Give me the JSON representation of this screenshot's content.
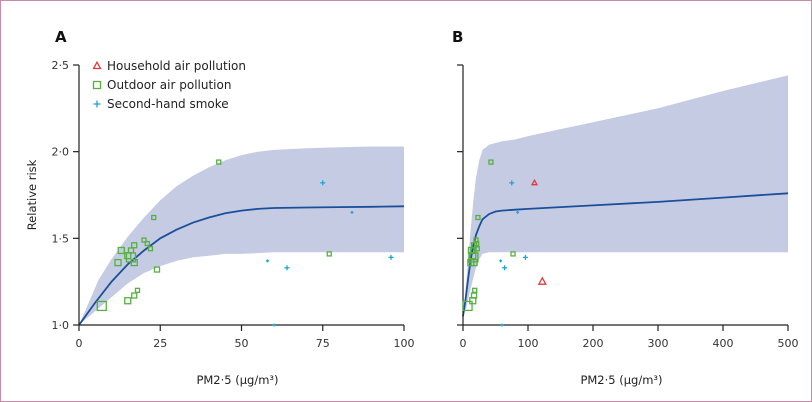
{
  "colors": {
    "band": "#c6cbe4",
    "curve": "#1a4f9a",
    "household": "#e03a3a",
    "outdoor": "#55b040",
    "secondhand": "#1da6d8",
    "axis": "#222222",
    "border": "#c98aa8"
  },
  "chart_data": [
    {
      "panel": "A",
      "type": "scatter",
      "xlabel": "PM2·5 (μg/m³)",
      "ylabel": "Relative risk",
      "xlim": [
        0,
        100
      ],
      "ylim": [
        1.0,
        2.5
      ],
      "x_ticks": [
        "0",
        "25",
        "50",
        "75",
        "100"
      ],
      "y_ticks": [
        "1·0",
        "1·5",
        "2·0",
        "2·5"
      ],
      "legend": [
        {
          "name": "Household air pollution",
          "marker": "triangle",
          "color_key": "household"
        },
        {
          "name": "Outdoor air pollution",
          "marker": "square",
          "color_key": "outdoor"
        },
        {
          "name": "Second-hand smoke",
          "marker": "plus",
          "color_key": "secondhand"
        }
      ],
      "curve": [
        [
          0,
          1.0
        ],
        [
          5,
          1.13
        ],
        [
          10,
          1.25
        ],
        [
          15,
          1.35
        ],
        [
          20,
          1.43
        ],
        [
          25,
          1.5
        ],
        [
          30,
          1.55
        ],
        [
          35,
          1.59
        ],
        [
          40,
          1.62
        ],
        [
          45,
          1.645
        ],
        [
          50,
          1.66
        ],
        [
          55,
          1.67
        ],
        [
          60,
          1.675
        ],
        [
          70,
          1.678
        ],
        [
          80,
          1.68
        ],
        [
          90,
          1.682
        ],
        [
          100,
          1.685
        ]
      ],
      "band_upper": [
        [
          0,
          1.0
        ],
        [
          3,
          1.13
        ],
        [
          6,
          1.26
        ],
        [
          10,
          1.38
        ],
        [
          15,
          1.51
        ],
        [
          20,
          1.62
        ],
        [
          25,
          1.72
        ],
        [
          30,
          1.8
        ],
        [
          35,
          1.86
        ],
        [
          40,
          1.91
        ],
        [
          45,
          1.95
        ],
        [
          50,
          1.98
        ],
        [
          55,
          2.0
        ],
        [
          60,
          2.01
        ],
        [
          70,
          2.02
        ],
        [
          80,
          2.025
        ],
        [
          90,
          2.03
        ],
        [
          100,
          2.03
        ]
      ],
      "band_lower": [
        [
          0,
          1.0
        ],
        [
          5,
          1.08
        ],
        [
          10,
          1.16
        ],
        [
          15,
          1.24
        ],
        [
          20,
          1.3
        ],
        [
          25,
          1.34
        ],
        [
          30,
          1.37
        ],
        [
          35,
          1.39
        ],
        [
          40,
          1.4
        ],
        [
          45,
          1.41
        ],
        [
          50,
          1.41
        ],
        [
          55,
          1.415
        ],
        [
          60,
          1.42
        ],
        [
          70,
          1.42
        ],
        [
          80,
          1.42
        ],
        [
          90,
          1.42
        ],
        [
          100,
          1.42
        ]
      ],
      "series": [
        {
          "name": "Household air pollution",
          "marker": "triangle",
          "points": []
        },
        {
          "name": "Outdoor air pollution",
          "marker": "square",
          "points": [
            [
              7,
              1.11,
              9
            ],
            [
              12,
              1.36,
              6
            ],
            [
              13,
              1.43,
              6
            ],
            [
              15,
              1.4,
              6
            ],
            [
              15,
              1.14,
              6
            ],
            [
              16,
              1.43,
              5
            ],
            [
              16,
              1.39,
              9
            ],
            [
              17,
              1.46,
              5
            ],
            [
              17,
              1.36,
              6
            ],
            [
              17,
              1.17,
              5
            ],
            [
              18,
              1.2,
              4
            ],
            [
              20,
              1.49,
              4
            ],
            [
              21,
              1.47,
              4
            ],
            [
              22,
              1.44,
              4
            ],
            [
              23,
              1.62,
              4
            ],
            [
              24,
              1.32,
              5
            ],
            [
              43,
              1.94,
              4
            ],
            [
              77,
              1.41,
              4
            ]
          ]
        },
        {
          "name": "Second-hand smoke",
          "marker": "plus",
          "points": [
            [
              58,
              1.37,
              3
            ],
            [
              60,
              1.0,
              3
            ],
            [
              64,
              1.33,
              5
            ],
            [
              75,
              1.82,
              5
            ],
            [
              84,
              1.65,
              3
            ],
            [
              96,
              1.39,
              5
            ]
          ]
        }
      ]
    },
    {
      "panel": "B",
      "type": "scatter",
      "xlabel": "PM2·5 (μg/m³)",
      "ylabel": "",
      "xlim": [
        0,
        500
      ],
      "ylim": [
        1.0,
        2.5
      ],
      "x_ticks": [
        "0",
        "100",
        "200",
        "300",
        "400",
        "500"
      ],
      "y_ticks": [
        "",
        "",
        "",
        ""
      ],
      "curve": [
        [
          0,
          1.05
        ],
        [
          4,
          1.15
        ],
        [
          8,
          1.27
        ],
        [
          12,
          1.38
        ],
        [
          16,
          1.46
        ],
        [
          20,
          1.52
        ],
        [
          25,
          1.57
        ],
        [
          30,
          1.61
        ],
        [
          40,
          1.64
        ],
        [
          50,
          1.655
        ],
        [
          60,
          1.66
        ],
        [
          80,
          1.665
        ],
        [
          100,
          1.67
        ],
        [
          200,
          1.69
        ],
        [
          300,
          1.71
        ],
        [
          400,
          1.735
        ],
        [
          500,
          1.76
        ]
      ],
      "band_upper": [
        [
          0,
          1.05
        ],
        [
          4,
          1.2
        ],
        [
          8,
          1.38
        ],
        [
          12,
          1.56
        ],
        [
          16,
          1.72
        ],
        [
          20,
          1.85
        ],
        [
          25,
          1.95
        ],
        [
          30,
          2.01
        ],
        [
          40,
          2.04
        ],
        [
          50,
          2.05
        ],
        [
          60,
          2.06
        ],
        [
          80,
          2.07
        ],
        [
          100,
          2.09
        ],
        [
          200,
          2.17
        ],
        [
          300,
          2.25
        ],
        [
          400,
          2.35
        ],
        [
          500,
          2.44
        ]
      ],
      "band_lower": [
        [
          0,
          1.05
        ],
        [
          5,
          1.1
        ],
        [
          10,
          1.18
        ],
        [
          15,
          1.26
        ],
        [
          20,
          1.33
        ],
        [
          25,
          1.38
        ],
        [
          30,
          1.41
        ],
        [
          40,
          1.42
        ],
        [
          60,
          1.42
        ],
        [
          100,
          1.42
        ],
        [
          200,
          1.42
        ],
        [
          300,
          1.42
        ],
        [
          400,
          1.42
        ],
        [
          500,
          1.42
        ]
      ],
      "series": [
        {
          "name": "Household air pollution",
          "marker": "triangle",
          "points": [
            [
              110,
              1.82,
              5
            ],
            [
              122,
              1.25,
              7
            ]
          ]
        },
        {
          "name": "Outdoor air pollution",
          "marker": "square",
          "points": [
            [
              7,
              1.11,
              9
            ],
            [
              12,
              1.36,
              6
            ],
            [
              13,
              1.43,
              6
            ],
            [
              15,
              1.4,
              6
            ],
            [
              15,
              1.14,
              6
            ],
            [
              16,
              1.43,
              5
            ],
            [
              16,
              1.39,
              9
            ],
            [
              17,
              1.46,
              5
            ],
            [
              17,
              1.36,
              6
            ],
            [
              17,
              1.17,
              5
            ],
            [
              18,
              1.2,
              4
            ],
            [
              20,
              1.49,
              4
            ],
            [
              21,
              1.47,
              4
            ],
            [
              22,
              1.44,
              4
            ],
            [
              23,
              1.62,
              4
            ],
            [
              43,
              1.94,
              4
            ],
            [
              77,
              1.41,
              4
            ]
          ]
        },
        {
          "name": "Second-hand smoke",
          "marker": "plus",
          "points": [
            [
              58,
              1.37,
              3
            ],
            [
              60,
              1.0,
              3
            ],
            [
              64,
              1.33,
              5
            ],
            [
              75,
              1.82,
              5
            ],
            [
              84,
              1.65,
              3
            ],
            [
              96,
              1.39,
              5
            ]
          ]
        }
      ]
    }
  ]
}
